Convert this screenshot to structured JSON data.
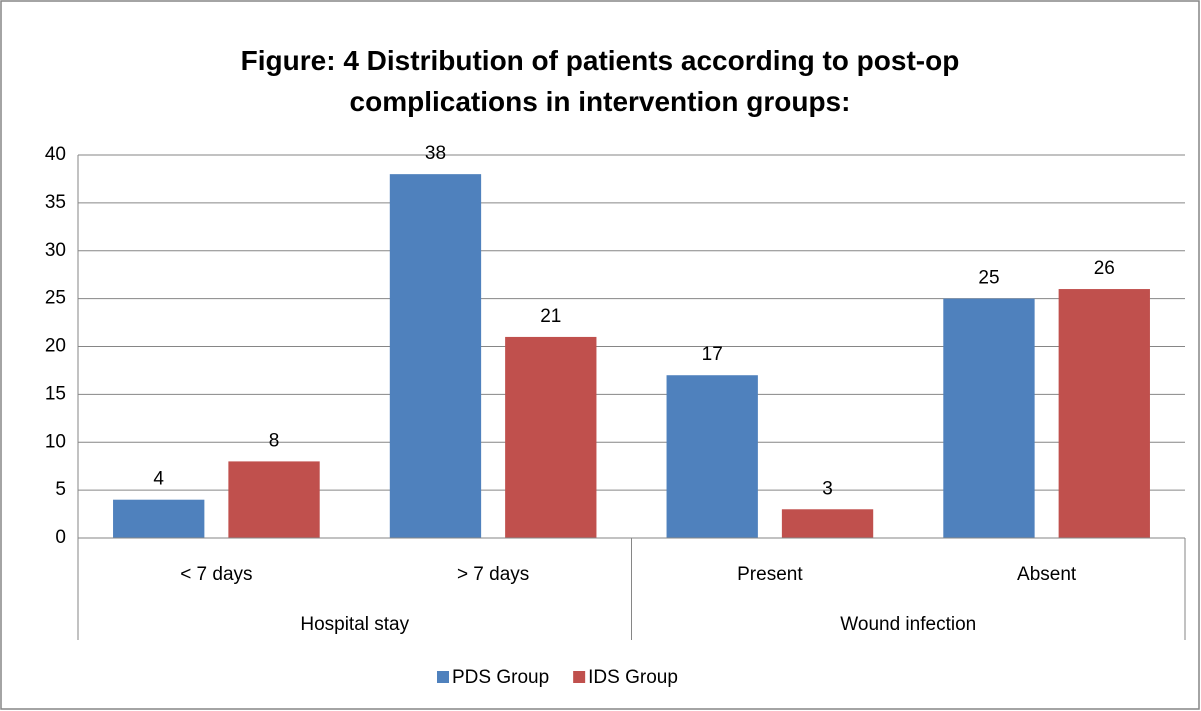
{
  "chart_data": {
    "type": "bar",
    "title": "Figure: 4 Distribution of patients according to post-op complications in intervention groups:",
    "groups": [
      {
        "name": "Hospital stay",
        "categories": [
          "< 7 days",
          "> 7 days"
        ]
      },
      {
        "name": "Wound infection",
        "categories": [
          "Present",
          "Absent"
        ]
      }
    ],
    "series": [
      {
        "name": "PDS Group",
        "color": "#4f81bd",
        "values": [
          4,
          38,
          17,
          25
        ]
      },
      {
        "name": "IDS Group",
        "color": "#c0504d",
        "values": [
          8,
          21,
          3,
          26
        ]
      }
    ],
    "ylim": [
      0,
      40
    ],
    "yticks": [
      0,
      5,
      10,
      15,
      20,
      25,
      30,
      35,
      40
    ],
    "grid": true,
    "legend": "bottom"
  }
}
